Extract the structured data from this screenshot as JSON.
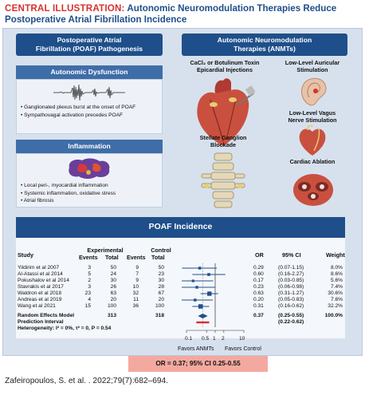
{
  "header": {
    "lead": "CENTRAL ILLUSTRATION:",
    "title_line1": "Autonomic Neuromodulation Therapies Reduce",
    "title_line2": "Postoperative Atrial Fibrillation Incidence"
  },
  "left_panel": {
    "title_line1": "Postoperative Atrial",
    "title_line2": "Fibrillation (POAF) Pathogenesis",
    "autonomic": {
      "title": "Autonomic Dysfunction",
      "bullets": [
        "Ganglionated plexus burst at the onset of POAF",
        "Sympathovagal activation precedes POAF"
      ]
    },
    "inflammation": {
      "title": "Inflammation",
      "bullets": [
        "Local peri-, myocardial inflammation",
        "Systemic inflammation, oxidative stress",
        "Atrial fibrosis"
      ]
    }
  },
  "right_panel": {
    "title_line1": "Autonomic Neuromodulation",
    "title_line2": "Therapies (ANMTs)",
    "therapies": {
      "cacl2": "CaCl₂ or Botulinum Toxin\nEpicardial Injections",
      "auricular": "Low-Level Auricular\nStimulation",
      "vagus": "Low-Level Vagus\nNerve Stimulation",
      "stellate": "Stellate Ganglion\nBlockade",
      "ablation": "Cardiac Ablation"
    }
  },
  "poaf": {
    "title": "POAF Incidence",
    "headers": {
      "study": "Study",
      "experimental": "Experimental",
      "control": "Control",
      "events": "Events",
      "total": "Total",
      "or": "OR",
      "ci": "95% CI",
      "weight": "Weight"
    },
    "rows": [
      {
        "study": "Yildirim et al 2007",
        "e_events": "3",
        "e_total": "50",
        "c_events": "9",
        "c_total": "50",
        "or": "0.29",
        "ci": "(0.07-1.15)",
        "weight": "8.0%",
        "or_val": 0.29,
        "lo": 0.07,
        "hi": 1.15,
        "w": 8.0
      },
      {
        "study": "Al-Atassi et al 2014",
        "e_events": "5",
        "e_total": "24",
        "c_events": "7",
        "c_total": "23",
        "or": "0.60",
        "ci": "(0.16-2.27)",
        "weight": "8.6%",
        "or_val": 0.6,
        "lo": 0.16,
        "hi": 2.27,
        "w": 8.6
      },
      {
        "study": "Pokushalov et al 2014",
        "e_events": "2",
        "e_total": "30",
        "c_events": "9",
        "c_total": "30",
        "or": "0.17",
        "ci": "(0.03-0.85)",
        "weight": "5.6%",
        "or_val": 0.17,
        "lo": 0.03,
        "hi": 0.85,
        "w": 5.6
      },
      {
        "study": "Stavrakis et al 2017",
        "e_events": "3",
        "e_total": "26",
        "c_events": "10",
        "c_total": "28",
        "or": "0.23",
        "ci": "(0.06-0.98)",
        "weight": "7.4%",
        "or_val": 0.23,
        "lo": 0.06,
        "hi": 0.98,
        "w": 7.4
      },
      {
        "study": "Waldron et al 2018",
        "e_events": "23",
        "e_total": "63",
        "c_events": "32",
        "c_total": "67",
        "or": "0.63",
        "ci": "(0.31-1.27)",
        "weight": "30.6%",
        "or_val": 0.63,
        "lo": 0.31,
        "hi": 1.27,
        "w": 30.6
      },
      {
        "study": "Andreas et al 2019",
        "e_events": "4",
        "e_total": "20",
        "c_events": "11",
        "c_total": "20",
        "or": "0.20",
        "ci": "(0.05-0.83)",
        "weight": "7.6%",
        "or_val": 0.2,
        "lo": 0.05,
        "hi": 0.83,
        "w": 7.6
      },
      {
        "study": "Wang et al 2021",
        "e_events": "15",
        "e_total": "100",
        "c_events": "36",
        "c_total": "100",
        "or": "0.31",
        "ci": "(0.16-0.62)",
        "weight": "32.2%",
        "or_val": 0.31,
        "lo": 0.16,
        "hi": 0.62,
        "w": 32.2
      }
    ],
    "summary": {
      "label": "Random Effects Model",
      "e_total": "313",
      "c_total": "318",
      "or": "0.37",
      "ci": "(0.25-0.55)",
      "weight": "100.0%",
      "or_val": 0.37,
      "lo": 0.25,
      "hi": 0.55
    },
    "prediction": {
      "label": "Prediction Interval",
      "ci": "(0.22-0.62)",
      "lo": 0.22,
      "hi": 0.62
    },
    "heterogeneity": "Heterogeneity: I² = 0%, τ² = 0, P = 0.54",
    "axis_ticks": [
      "0.1",
      "0.5",
      "1",
      "2",
      "10"
    ],
    "axis_values": [
      0.1,
      0.5,
      1,
      2,
      10
    ],
    "favors_left": "Favors ANMTs",
    "favors_right": "Favors Control",
    "result": "OR = 0.37; 95% CI 0.25-0.55"
  },
  "citation": "Zafeiropoulos, S. et al. . 2022;79(7):682–694.",
  "colors": {
    "navy": "#1f4f8a",
    "mid_blue": "#3f6da8",
    "light_blue": "#d7e1ee",
    "red_accent": "#d6312f",
    "result_bg": "#f4a9a0"
  },
  "chart_data": {
    "type": "forest",
    "categories": [
      "Yildirim et al 2007",
      "Al-Atassi et al 2014",
      "Pokushalov et al 2014",
      "Stavrakis et al 2017",
      "Waldron et al 2018",
      "Andreas et al 2019",
      "Wang et al 2021"
    ],
    "odds_ratios": [
      0.29,
      0.6,
      0.17,
      0.23,
      0.63,
      0.2,
      0.31
    ],
    "ci_lower": [
      0.07,
      0.16,
      0.03,
      0.06,
      0.31,
      0.05,
      0.16
    ],
    "ci_upper": [
      1.15,
      2.27,
      0.85,
      0.98,
      1.27,
      0.83,
      0.62
    ],
    "weights": [
      8.0,
      8.6,
      5.6,
      7.4,
      30.6,
      7.6,
      32.2
    ],
    "pooled": {
      "or": 0.37,
      "ci": [
        0.25,
        0.55
      ]
    },
    "prediction_interval": [
      0.22,
      0.62
    ],
    "x_scale": "log",
    "xlim": [
      0.1,
      10
    ]
  }
}
